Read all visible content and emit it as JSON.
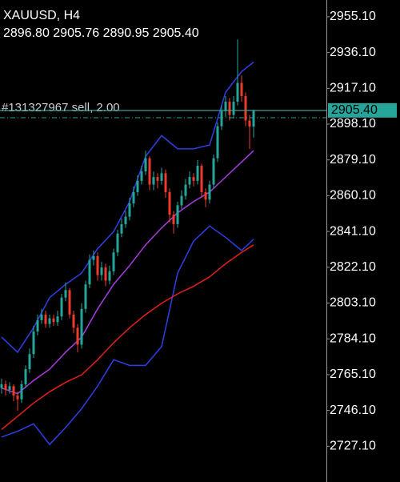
{
  "chart_data": {
    "type": "candlestick",
    "title": "XAUUSD, H4",
    "subtitle": "2896.80 2905.76 2890.95 2905.40",
    "up_color": "#26a69a",
    "down_color": "#ef3b2c",
    "open": [
      2758,
      2760,
      2757,
      2759,
      2754,
      2752,
      2760,
      2768,
      2776,
      2788,
      2794,
      2797,
      2792,
      2795,
      2793,
      2796,
      2806,
      2810,
      2797,
      2790,
      2781,
      2800,
      2813,
      2826,
      2828,
      2818,
      2822,
      2815,
      2820,
      2830,
      2840,
      2845,
      2849,
      2856,
      2862,
      2868,
      2873,
      2880,
      2866,
      2870,
      2868,
      2872,
      2862,
      2850,
      2845,
      2855,
      2860,
      2866,
      2870,
      2868,
      2876,
      2862,
      2858,
      2866,
      2880,
      2897,
      2905,
      2910,
      2903,
      2910,
      2920,
      2913,
      2900,
      2896.8
    ],
    "high": [
      2763,
      2762,
      2761,
      2760,
      2756,
      2762,
      2770,
      2779,
      2791,
      2797,
      2800,
      2799,
      2797,
      2797,
      2799,
      2808,
      2814,
      2811,
      2799,
      2792,
      2803,
      2815,
      2829,
      2831,
      2830,
      2825,
      2824,
      2823,
      2832,
      2842,
      2848,
      2852,
      2859,
      2865,
      2871,
      2876,
      2884,
      2881,
      2873,
      2872,
      2875,
      2874,
      2864,
      2852,
      2857,
      2863,
      2869,
      2873,
      2872,
      2879,
      2877,
      2864,
      2868,
      2882,
      2899,
      2908,
      2913,
      2912,
      2913,
      2943,
      2924,
      2915,
      2903,
      2905.76
    ],
    "low": [
      2755,
      2754,
      2755,
      2751,
      2746,
      2750,
      2758,
      2766,
      2774,
      2786,
      2792,
      2790,
      2790,
      2791,
      2791,
      2794,
      2804,
      2795,
      2787,
      2777,
      2779,
      2798,
      2811,
      2823,
      2815,
      2815,
      2812,
      2813,
      2818,
      2828,
      2838,
      2843,
      2847,
      2854,
      2860,
      2866,
      2871,
      2863,
      2863,
      2864,
      2866,
      2859,
      2846,
      2840,
      2843,
      2853,
      2858,
      2864,
      2865,
      2866,
      2859,
      2854,
      2856,
      2864,
      2878,
      2895,
      2902,
      2900,
      2901,
      2908,
      2910,
      2897,
      2885,
      2890.95
    ],
    "close": [
      2760,
      2757,
      2759,
      2754,
      2752,
      2760,
      2768,
      2776,
      2788,
      2794,
      2797,
      2792,
      2795,
      2793,
      2796,
      2806,
      2810,
      2797,
      2790,
      2781,
      2800,
      2813,
      2826,
      2828,
      2818,
      2822,
      2815,
      2820,
      2830,
      2840,
      2845,
      2849,
      2856,
      2862,
      2868,
      2873,
      2880,
      2866,
      2870,
      2868,
      2872,
      2862,
      2850,
      2845,
      2855,
      2860,
      2866,
      2870,
      2868,
      2876,
      2862,
      2858,
      2866,
      2880,
      2897,
      2905,
      2910,
      2903,
      2910,
      2920,
      2913,
      2900,
      2896.8,
      2905.4
    ],
    "indicators": [
      {
        "color": "#2f3ee6",
        "x": [
          0,
          4,
          8,
          12,
          16,
          20,
          24,
          28,
          32,
          36,
          40,
          44,
          48,
          52,
          56,
          60,
          63
        ],
        "values": [
          2785,
          2777,
          2790,
          2806,
          2813,
          2819,
          2832,
          2841,
          2857,
          2881,
          2892,
          2885,
          2885,
          2887,
          2915,
          2926,
          2931
        ]
      },
      {
        "color": "#2f3ee6",
        "x": [
          0,
          4,
          8,
          12,
          16,
          20,
          24,
          28,
          32,
          36,
          40,
          44,
          48,
          52,
          56,
          60,
          63
        ],
        "values": [
          2732,
          2735,
          2739,
          2728,
          2737,
          2747,
          2759,
          2773,
          2770,
          2770,
          2780,
          2819,
          2836,
          2844,
          2838,
          2831,
          2837
        ]
      },
      {
        "color": "#a83ce0",
        "x": [
          0,
          4,
          8,
          12,
          16,
          20,
          24,
          28,
          32,
          36,
          40,
          44,
          48,
          52,
          56,
          60,
          63
        ],
        "values": [
          2758,
          2755,
          2762,
          2768,
          2777,
          2785,
          2800,
          2813,
          2823,
          2834,
          2843,
          2851,
          2857,
          2862,
          2870,
          2878,
          2884
        ]
      },
      {
        "color": "#e3201b",
        "x": [
          0,
          4,
          8,
          12,
          16,
          20,
          24,
          28,
          32,
          36,
          40,
          44,
          48,
          52,
          56,
          60,
          63
        ],
        "values": [
          2736,
          2743,
          2750,
          2756,
          2761,
          2765,
          2773,
          2782,
          2790,
          2797,
          2803,
          2808,
          2812,
          2817,
          2824,
          2830,
          2834
        ]
      }
    ],
    "ylim": [
      2708.1,
      2964.0
    ],
    "yticks": [
      {
        "value": 2955.1,
        "label": "2955.10"
      },
      {
        "value": 2936.1,
        "label": "2936.10"
      },
      {
        "value": 2917.1,
        "label": "2917.10"
      },
      {
        "value": 2898.1,
        "label": "2898.10"
      },
      {
        "value": 2879.1,
        "label": "2879.10"
      },
      {
        "value": 2860.1,
        "label": "2860.10"
      },
      {
        "value": 2841.1,
        "label": "2841.10"
      },
      {
        "value": 2822.1,
        "label": "2822.10"
      },
      {
        "value": 2803.1,
        "label": "2803.10"
      },
      {
        "value": 2784.1,
        "label": "2784.10"
      },
      {
        "value": 2765.1,
        "label": "2765.10"
      },
      {
        "value": 2746.1,
        "label": "2746.10"
      },
      {
        "value": 2727.1,
        "label": "2727.10"
      }
    ],
    "last_price": {
      "value": 2905.4,
      "label": "2905.40"
    },
    "order_line": {
      "value": 2905.3,
      "label": "#131327967 sell, 2.00"
    },
    "ask_line": 2901.5
  }
}
